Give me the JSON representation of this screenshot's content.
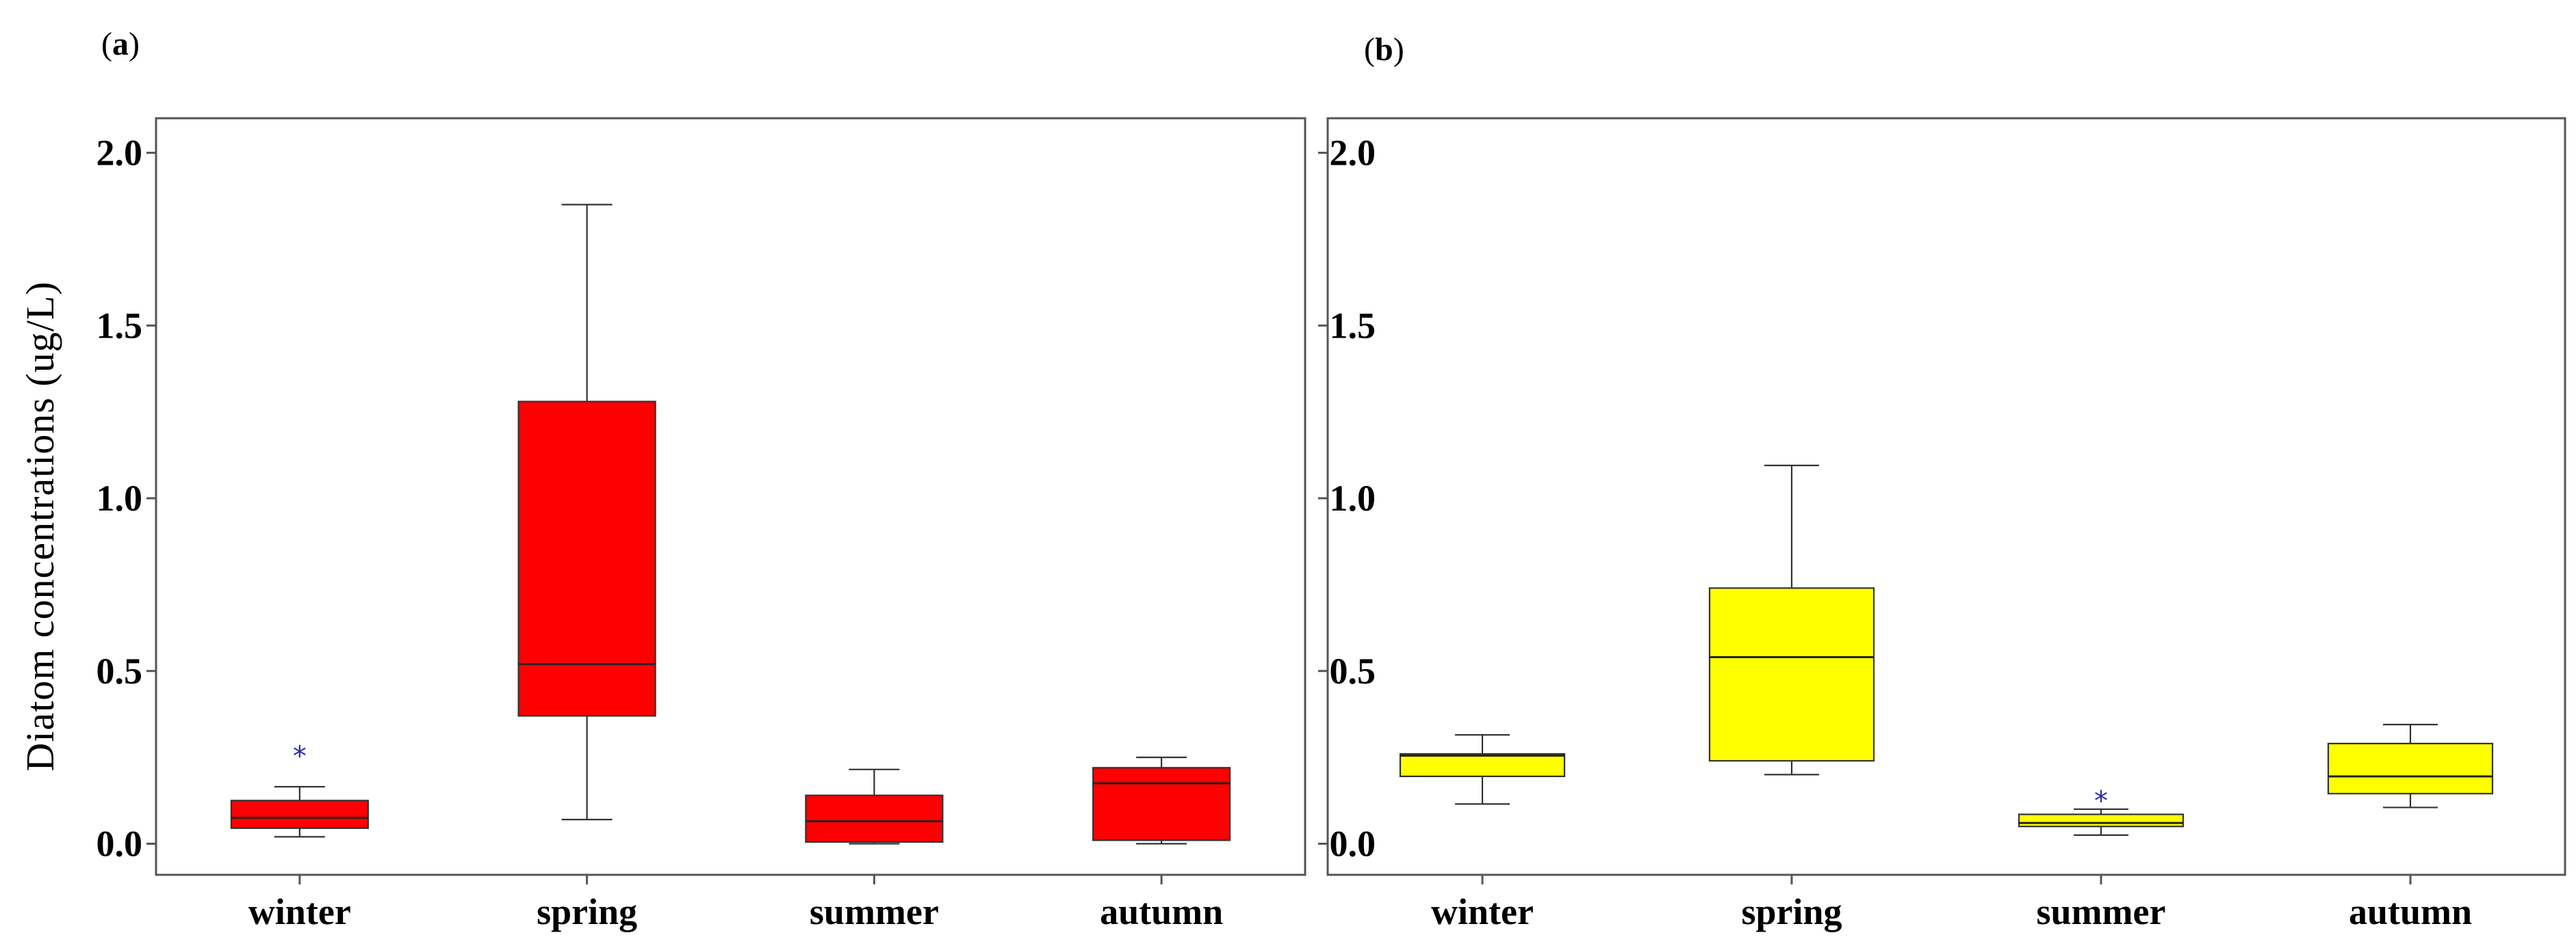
{
  "figure": {
    "ylabel": "Diatom concentrations (ug/L)"
  },
  "chart_data": [
    {
      "type": "box",
      "panel_label": "a",
      "categories": [
        "winter",
        "spring",
        "summer",
        "autumn"
      ],
      "ylim": [
        -0.09,
        2.1
      ],
      "yticks": [
        "0.0",
        "0.5",
        "1.0",
        "1.5",
        "2.0"
      ],
      "ytick_values": [
        0.0,
        0.5,
        1.0,
        1.5,
        2.0
      ],
      "color": "#ff0000",
      "grid": false,
      "boxes": [
        {
          "category": "winter",
          "min": 0.02,
          "q1": 0.045,
          "median": 0.075,
          "q3": 0.125,
          "max": 0.165,
          "outliers": [
            0.27
          ]
        },
        {
          "category": "spring",
          "min": 0.07,
          "q1": 0.37,
          "median": 0.52,
          "q3": 1.28,
          "max": 1.85,
          "outliers": []
        },
        {
          "category": "summer",
          "min": 0.0,
          "q1": 0.005,
          "median": 0.065,
          "q3": 0.14,
          "max": 0.215,
          "outliers": []
        },
        {
          "category": "autumn",
          "min": 0.0,
          "q1": 0.01,
          "median": 0.175,
          "q3": 0.22,
          "max": 0.25,
          "outliers": []
        }
      ]
    },
    {
      "type": "box",
      "panel_label": "b",
      "categories": [
        "winter",
        "spring",
        "summer",
        "autumn"
      ],
      "ylim": [
        -0.09,
        2.1
      ],
      "yticks": [
        "0.0",
        "0.5",
        "1.0",
        "1.5",
        "2.0"
      ],
      "ytick_values": [
        0.0,
        0.5,
        1.0,
        1.5,
        2.0
      ],
      "color": "#ffff00",
      "grid": false,
      "boxes": [
        {
          "category": "winter",
          "min": 0.115,
          "q1": 0.195,
          "median": 0.255,
          "q3": 0.26,
          "max": 0.315,
          "outliers": []
        },
        {
          "category": "spring",
          "min": 0.2,
          "q1": 0.24,
          "median": 0.54,
          "q3": 0.74,
          "max": 1.095,
          "outliers": []
        },
        {
          "category": "summer",
          "min": 0.025,
          "q1": 0.05,
          "median": 0.06,
          "q3": 0.085,
          "max": 0.1,
          "outliers": [
            0.14
          ]
        },
        {
          "category": "autumn",
          "min": 0.105,
          "q1": 0.145,
          "median": 0.195,
          "q3": 0.29,
          "max": 0.345,
          "outliers": []
        }
      ]
    }
  ]
}
